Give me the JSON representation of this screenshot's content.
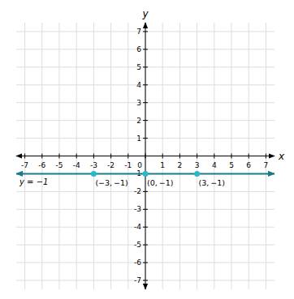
{
  "chart_data": {
    "type": "scatter",
    "xlabel": "x",
    "ylabel": "y",
    "xlim": [
      -7.5,
      7.5
    ],
    "ylim": [
      -7.5,
      7.5
    ],
    "xticks": [
      -7,
      -6,
      -5,
      -4,
      -3,
      -2,
      -1,
      0,
      1,
      2,
      3,
      4,
      5,
      6,
      7
    ],
    "yticks": [
      -7,
      -6,
      -5,
      -4,
      -3,
      -2,
      -1,
      0,
      1,
      2,
      3,
      4,
      5,
      6,
      7
    ],
    "grid": true,
    "series": [
      {
        "type": "line",
        "color": "#1a7a8a",
        "x": [
          -7.5,
          7.5
        ],
        "values": [
          -1,
          -1
        ],
        "annotation": "y = −1"
      },
      {
        "type": "scatter",
        "color": "#29b8c8",
        "x": [
          -3,
          0,
          3
        ],
        "values": [
          -1,
          -1,
          -1
        ],
        "value_labels": [
          "(−3, −1)",
          "(0, −1)",
          "(3, −1)"
        ]
      }
    ]
  }
}
